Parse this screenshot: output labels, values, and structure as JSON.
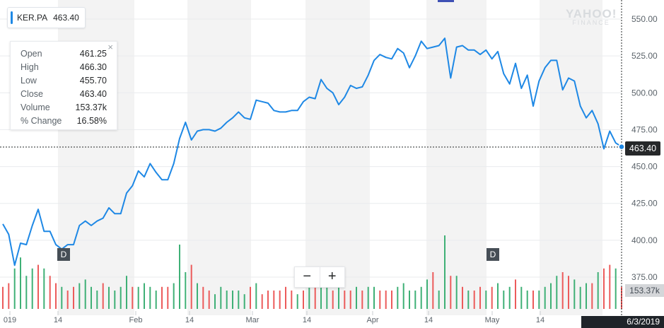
{
  "legend": {
    "symbol": "KER.PA",
    "price": "463.40",
    "color": "#1e88e5"
  },
  "tooltip": {
    "rows": [
      {
        "label": "Open",
        "value": "461.25"
      },
      {
        "label": "High",
        "value": "466.30"
      },
      {
        "label": "Low",
        "value": "455.70"
      },
      {
        "label": "Close",
        "value": "463.40"
      },
      {
        "label": "Volume",
        "value": "153.37k"
      },
      {
        "label": "% Change",
        "value": "16.58%"
      }
    ],
    "close_icon": "×"
  },
  "watermark": {
    "line1": "YAHOO!",
    "line2": "FINANCE"
  },
  "zoom": {
    "minus": "−",
    "plus": "+"
  },
  "dividend_marker": "D",
  "price_label": "463.40",
  "volume_label": "153.37k",
  "date_label": "6/3/2019",
  "colors": {
    "line": "#1e88e5",
    "vol_up": "#3fb076",
    "vol_down": "#ec5b5b",
    "band": "#f3f3f3",
    "grid": "#e9ebee"
  },
  "chart_data": {
    "type": "line",
    "symbol": "KER.PA",
    "x_ticks": [
      "019",
      "14",
      "Feb",
      "14",
      "Mar",
      "14",
      "Apr",
      "14",
      "May",
      "14"
    ],
    "y_ticks": [
      375,
      400,
      425,
      450,
      475,
      500,
      525,
      550
    ],
    "ylim": [
      365,
      560
    ],
    "price": [
      411,
      404,
      383,
      398,
      397,
      410,
      421,
      406,
      406,
      397,
      394,
      397,
      397,
      410,
      413,
      410,
      413,
      415,
      422,
      418,
      418,
      432,
      437,
      447,
      443,
      452,
      446,
      441,
      441,
      452,
      469,
      480,
      468,
      474,
      475,
      475,
      474,
      476,
      480,
      483,
      487,
      483,
      482,
      495,
      494,
      493,
      488,
      487,
      487,
      488,
      488,
      494,
      497,
      496,
      509,
      503,
      500,
      492,
      497,
      505,
      503,
      504,
      512,
      522,
      526,
      524,
      523,
      530,
      527,
      517,
      525,
      535,
      530,
      531,
      532,
      537,
      510,
      531,
      532,
      529,
      529,
      526,
      529,
      523,
      528,
      513,
      506,
      520,
      503,
      512,
      491,
      508,
      517,
      522,
      522,
      502,
      510,
      508,
      491,
      483,
      488,
      479,
      462,
      474,
      466,
      463.4
    ],
    "volume_dir": [
      "d",
      "d",
      "u",
      "u",
      "u",
      "u",
      "d",
      "u",
      "d",
      "d",
      "u",
      "d",
      "d",
      "u",
      "u",
      "u",
      "u",
      "d",
      "u",
      "u",
      "u",
      "u",
      "d",
      "u",
      "u",
      "u",
      "u",
      "d",
      "d",
      "u",
      "u",
      "u",
      "d",
      "u",
      "d",
      "d",
      "u",
      "u",
      "u",
      "u",
      "u",
      "u",
      "d",
      "u",
      "d",
      "d",
      "d",
      "d",
      "d",
      "d",
      "u",
      "d",
      "u",
      "d",
      "u",
      "u",
      "d",
      "u",
      "d",
      "d",
      "u",
      "d",
      "u",
      "u",
      "d",
      "d",
      "d",
      "u",
      "u",
      "u",
      "u",
      "u",
      "u",
      "d",
      "u",
      "u",
      "d",
      "u",
      "d",
      "u",
      "d",
      "d",
      "u",
      "d",
      "u",
      "u",
      "u",
      "d",
      "u",
      "u",
      "d",
      "u",
      "u",
      "u",
      "u",
      "d",
      "d",
      "u",
      "u",
      "u",
      "d",
      "u",
      "d",
      "d",
      "u",
      "d"
    ],
    "volume_height": [
      12,
      14,
      22,
      28,
      18,
      22,
      24,
      22,
      18,
      14,
      12,
      10,
      12,
      14,
      16,
      12,
      10,
      14,
      12,
      10,
      12,
      18,
      12,
      12,
      14,
      12,
      10,
      12,
      12,
      14,
      35,
      20,
      24,
      14,
      12,
      10,
      8,
      12,
      10,
      10,
      10,
      8,
      12,
      14,
      8,
      10,
      10,
      10,
      12,
      10,
      8,
      10,
      12,
      14,
      20,
      12,
      10,
      12,
      10,
      10,
      12,
      10,
      12,
      12,
      10,
      10,
      10,
      12,
      14,
      10,
      10,
      12,
      16,
      20,
      10,
      40,
      18,
      18,
      12,
      10,
      10,
      12,
      10,
      12,
      14,
      10,
      12,
      16,
      12,
      10,
      10,
      10,
      12,
      14,
      18,
      20,
      18,
      16,
      12,
      14,
      14,
      20,
      22,
      24,
      22,
      12
    ],
    "last_close": 463.4,
    "last_volume": "153.37k",
    "last_date": "6/3/2019"
  }
}
